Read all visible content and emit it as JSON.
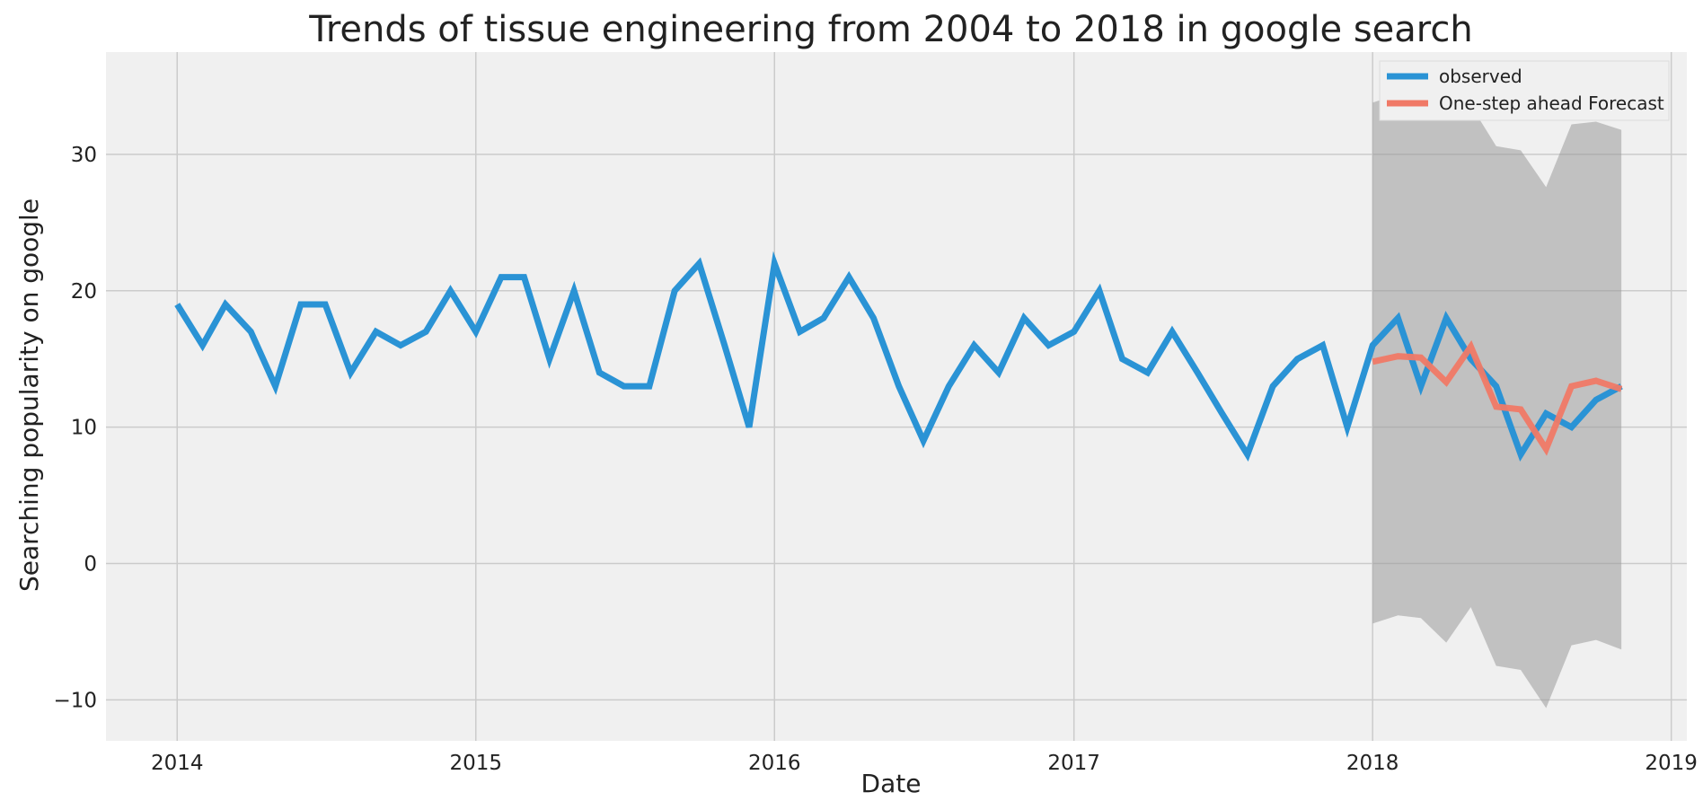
{
  "chart_data": {
    "type": "line",
    "title": "Trends of tissue engineering from 2004 to 2018 in google search",
    "xlabel": "Date",
    "ylabel": "Searching popularity on google",
    "x_axis": "date",
    "xlim": [
      "2013-10-06",
      "2019-01-20"
    ],
    "ylim": [
      -13,
      37.5
    ],
    "x_ticks": [
      "2014",
      "2015",
      "2016",
      "2017",
      "2018",
      "2019"
    ],
    "y_ticks": [
      -10,
      0,
      10,
      20,
      30
    ],
    "grid": true,
    "legend_position": "top-right",
    "colors": {
      "background": "#f0f0f0",
      "grid": "#cbcbcb",
      "observed": "#2a93d5",
      "forecast": "#f07966",
      "confidence": "#9a9a9a"
    },
    "series": [
      {
        "name": "observed",
        "x": [
          "2014-01",
          "2014-02",
          "2014-03",
          "2014-04",
          "2014-05",
          "2014-06",
          "2014-07",
          "2014-08",
          "2014-09",
          "2014-10",
          "2014-11",
          "2014-12",
          "2015-01",
          "2015-02",
          "2015-03",
          "2015-04",
          "2015-05",
          "2015-06",
          "2015-07",
          "2015-08",
          "2015-09",
          "2015-10",
          "2015-11",
          "2015-12",
          "2016-01",
          "2016-02",
          "2016-03",
          "2016-04",
          "2016-05",
          "2016-06",
          "2016-07",
          "2016-08",
          "2016-09",
          "2016-10",
          "2016-11",
          "2016-12",
          "2017-01",
          "2017-02",
          "2017-03",
          "2017-04",
          "2017-05",
          "2017-06",
          "2017-07",
          "2017-08",
          "2017-09",
          "2017-10",
          "2017-11",
          "2017-12",
          "2018-01",
          "2018-02",
          "2018-03",
          "2018-04",
          "2018-05",
          "2018-06",
          "2018-07",
          "2018-08",
          "2018-09",
          "2018-10",
          "2018-11"
        ],
        "values": [
          19,
          16,
          19,
          17,
          13,
          19,
          19,
          14,
          17,
          16,
          17,
          20,
          17,
          21,
          21,
          15,
          20,
          14,
          13,
          13,
          20,
          22,
          16,
          10,
          22,
          17,
          18,
          21,
          18,
          13,
          9,
          13,
          16,
          14,
          18,
          16,
          17,
          20,
          15,
          14,
          17,
          14,
          11,
          8,
          13,
          15,
          16,
          10,
          16,
          18,
          13,
          18,
          15,
          13,
          8,
          11,
          10,
          12,
          13
        ]
      },
      {
        "name": "One-step ahead Forecast",
        "x": [
          "2018-01",
          "2018-02",
          "2018-03",
          "2018-04",
          "2018-05",
          "2018-06",
          "2018-07",
          "2018-08",
          "2018-09",
          "2018-10",
          "2018-11"
        ],
        "values": [
          14.8,
          15.2,
          15.1,
          13.3,
          15.9,
          11.5,
          11.3,
          8.4,
          13.0,
          13.4,
          12.8
        ]
      }
    ],
    "confidence_interval": {
      "x": [
        "2018-01",
        "2018-02",
        "2018-03",
        "2018-04",
        "2018-05",
        "2018-06",
        "2018-07",
        "2018-08",
        "2018-09",
        "2018-10",
        "2018-11"
      ],
      "upper": [
        33.8,
        34.4,
        34.3,
        32.6,
        33.6,
        30.6,
        30.3,
        27.6,
        32.2,
        32.4,
        31.8
      ],
      "lower": [
        -4.4,
        -3.8,
        -4.0,
        -5.8,
        -3.2,
        -7.5,
        -7.8,
        -10.6,
        -6.0,
        -5.6,
        -6.3
      ]
    }
  }
}
